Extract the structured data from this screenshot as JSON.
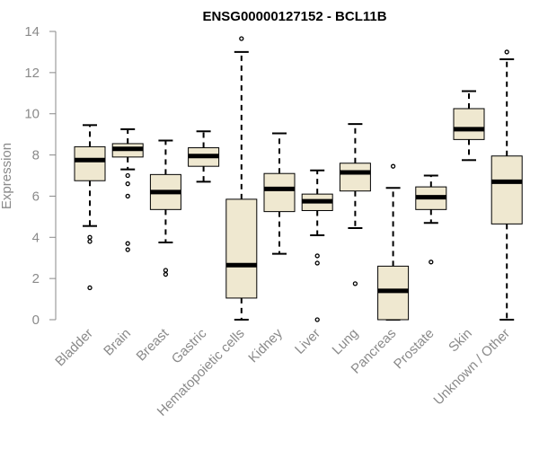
{
  "chart_data": {
    "type": "boxplot",
    "title": "ENSG00000127152 - BCL11B",
    "xlabel": "",
    "ylabel": "Expression",
    "ylim": [
      0,
      14
    ],
    "yticks": [
      0,
      2,
      4,
      6,
      8,
      10,
      12,
      14
    ],
    "grid": false,
    "legend": "none",
    "colors": {
      "box_fill": "#efe8d0",
      "box_stroke": "#000000",
      "median": "#000000",
      "axis": "#8a8a8a",
      "text": "#8a8a8a",
      "title": "#000000"
    },
    "categories": [
      "Bladder",
      "Brain",
      "Breast",
      "Gastric",
      "Hematopoietic cells",
      "Kidney",
      "Liver",
      "Lung",
      "Pancreas",
      "Prostate",
      "Skin",
      "Unknown / Other"
    ],
    "boxes": [
      {
        "category": "Bladder",
        "whisker_low": 4.55,
        "q1": 6.75,
        "median": 7.75,
        "q3": 8.4,
        "whisker_high": 9.45,
        "outliers": [
          4.0,
          3.8,
          1.55
        ]
      },
      {
        "category": "Brain",
        "whisker_low": 7.3,
        "q1": 7.9,
        "median": 8.3,
        "q3": 8.55,
        "whisker_high": 9.25,
        "outliers": [
          7.0,
          6.6,
          6.0,
          3.7,
          3.4
        ]
      },
      {
        "category": "Breast",
        "whisker_low": 3.75,
        "q1": 5.35,
        "median": 6.2,
        "q3": 7.05,
        "whisker_high": 8.7,
        "outliers": [
          2.4,
          2.2
        ]
      },
      {
        "category": "Gastric",
        "whisker_low": 6.7,
        "q1": 7.45,
        "median": 7.95,
        "q3": 8.35,
        "whisker_high": 9.15,
        "outliers": []
      },
      {
        "category": "Hematopoietic cells",
        "whisker_low": 0.0,
        "q1": 1.05,
        "median": 2.65,
        "q3": 5.85,
        "whisker_high": 13.0,
        "outliers": [
          13.65
        ]
      },
      {
        "category": "Kidney",
        "whisker_low": 3.2,
        "q1": 5.25,
        "median": 6.35,
        "q3": 7.1,
        "whisker_high": 9.05,
        "outliers": []
      },
      {
        "category": "Liver",
        "whisker_low": 4.1,
        "q1": 5.3,
        "median": 5.75,
        "q3": 6.1,
        "whisker_high": 7.25,
        "outliers": [
          3.1,
          2.75,
          0.0
        ]
      },
      {
        "category": "Lung",
        "whisker_low": 4.45,
        "q1": 6.25,
        "median": 7.15,
        "q3": 7.6,
        "whisker_high": 9.5,
        "outliers": [
          1.75
        ]
      },
      {
        "category": "Pancreas",
        "whisker_low": 0.0,
        "q1": 0.0,
        "median": 1.4,
        "q3": 2.6,
        "whisker_high": 6.4,
        "outliers": [
          7.45
        ]
      },
      {
        "category": "Prostate",
        "whisker_low": 4.7,
        "q1": 5.35,
        "median": 5.95,
        "q3": 6.45,
        "whisker_high": 7.0,
        "outliers": [
          2.8
        ]
      },
      {
        "category": "Skin",
        "whisker_low": 7.75,
        "q1": 8.75,
        "median": 9.25,
        "q3": 10.25,
        "whisker_high": 11.1,
        "outliers": []
      },
      {
        "category": "Unknown / Other",
        "whisker_low": 0.0,
        "q1": 4.65,
        "median": 6.7,
        "q3": 7.95,
        "whisker_high": 12.65,
        "outliers": [
          13.0
        ]
      }
    ]
  }
}
